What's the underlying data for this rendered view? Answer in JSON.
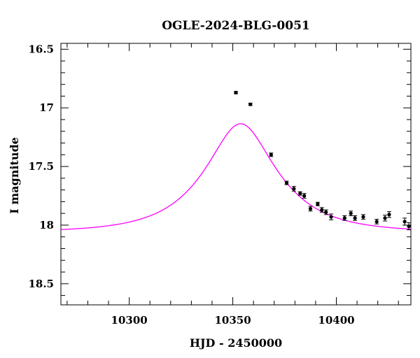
{
  "chart_data": {
    "type": "scatter",
    "title": "OGLE-2024-BLG-0051",
    "xlabel": "HJD - 2450000",
    "ylabel": "I magnitude",
    "xlim": [
      10267,
      10436
    ],
    "ylim": [
      18.68,
      16.45
    ],
    "y_inverted": true,
    "x_ticks": [
      10300,
      10350,
      10400
    ],
    "x_tick_labels": [
      "10300",
      "10350",
      "10400"
    ],
    "y_ticks": [
      16.5,
      17,
      17.5,
      18,
      18.5
    ],
    "y_tick_labels": [
      "16.5",
      "17",
      "17.5",
      "18",
      "18.5"
    ],
    "grid": false,
    "series": [
      {
        "type": "scatter",
        "color": "#000000",
        "points": [
          {
            "x": 10351.5,
            "y": 16.87,
            "err": 0.01
          },
          {
            "x": 10358.5,
            "y": 16.97,
            "err": 0.01
          },
          {
            "x": 10368.5,
            "y": 17.4,
            "err": 0.015
          },
          {
            "x": 10376.0,
            "y": 17.64,
            "err": 0.015
          },
          {
            "x": 10379.5,
            "y": 17.69,
            "err": 0.02
          },
          {
            "x": 10382.5,
            "y": 17.73,
            "err": 0.015
          },
          {
            "x": 10384.5,
            "y": 17.75,
            "err": 0.02
          },
          {
            "x": 10387.5,
            "y": 17.86,
            "err": 0.02
          },
          {
            "x": 10391.0,
            "y": 17.82,
            "err": 0.015
          },
          {
            "x": 10393.0,
            "y": 17.87,
            "err": 0.02
          },
          {
            "x": 10395.0,
            "y": 17.89,
            "err": 0.02
          },
          {
            "x": 10397.5,
            "y": 17.93,
            "err": 0.025
          },
          {
            "x": 10404.0,
            "y": 17.94,
            "err": 0.02
          },
          {
            "x": 10407.0,
            "y": 17.9,
            "err": 0.02
          },
          {
            "x": 10409.0,
            "y": 17.94,
            "err": 0.02
          },
          {
            "x": 10413.0,
            "y": 17.93,
            "err": 0.02
          },
          {
            "x": 10419.5,
            "y": 17.97,
            "err": 0.02
          },
          {
            "x": 10423.5,
            "y": 17.94,
            "err": 0.025
          },
          {
            "x": 10425.5,
            "y": 17.91,
            "err": 0.025
          },
          {
            "x": 10433.0,
            "y": 17.97,
            "err": 0.03
          },
          {
            "x": 10435.0,
            "y": 18.01,
            "err": 0.03
          }
        ]
      },
      {
        "type": "line",
        "color": "#ff00ff",
        "model": {
          "t0": 10353.8,
          "u0": 0.46,
          "tE": 31,
          "baseline": 18.06
        }
      }
    ]
  }
}
